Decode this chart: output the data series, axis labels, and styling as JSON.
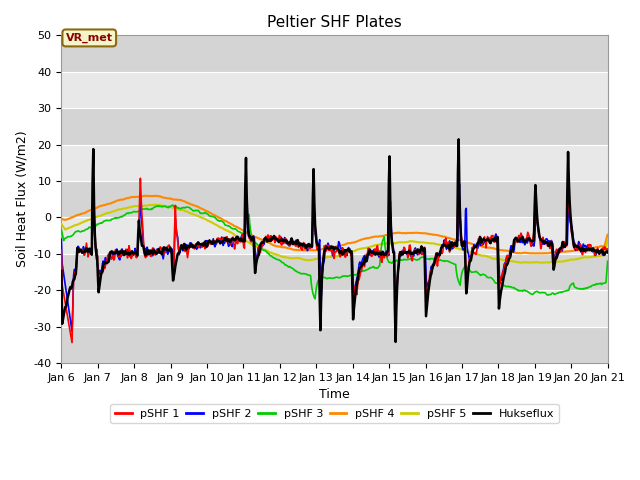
{
  "title": "Peltier SHF Plates",
  "xlabel": "Time",
  "ylabel": "Soil Heat Flux (W/m2)",
  "ylim": [
    -40,
    50
  ],
  "xlim": [
    0,
    15
  ],
  "xtick_labels": [
    "Jan 6",
    "Jan 7",
    "Jan 8",
    "Jan 9",
    "Jan 10",
    "Jan 11",
    "Jan 12",
    "Jan 13",
    "Jan 14",
    "Jan 15",
    "Jan 16",
    "Jan 17",
    "Jan 18",
    "Jan 19",
    "Jan 20",
    "Jan 21"
  ],
  "ytick_labels": [
    "-40",
    "-30",
    "-20",
    "-10",
    "0",
    "10",
    "20",
    "30",
    "40",
    "50"
  ],
  "ytick_values": [
    -40,
    -30,
    -20,
    -10,
    0,
    10,
    20,
    30,
    40,
    50
  ],
  "legend_labels": [
    "pSHF 1",
    "pSHF 2",
    "pSHF 3",
    "pSHF 4",
    "pSHF 5",
    "Hukseflux"
  ],
  "line_colors": [
    "#ff0000",
    "#0000ff",
    "#00cc00",
    "#ff8800",
    "#cccc00",
    "#000000"
  ],
  "line_widths": [
    1.2,
    1.2,
    1.2,
    1.5,
    1.5,
    1.8
  ],
  "annotation_text": "VR_met",
  "plot_bg_color": "#e8e8e8",
  "fig_bg_color": "#ffffff",
  "grid_color": "#ffffff",
  "title_fontsize": 11,
  "label_fontsize": 9,
  "tick_fontsize": 8
}
